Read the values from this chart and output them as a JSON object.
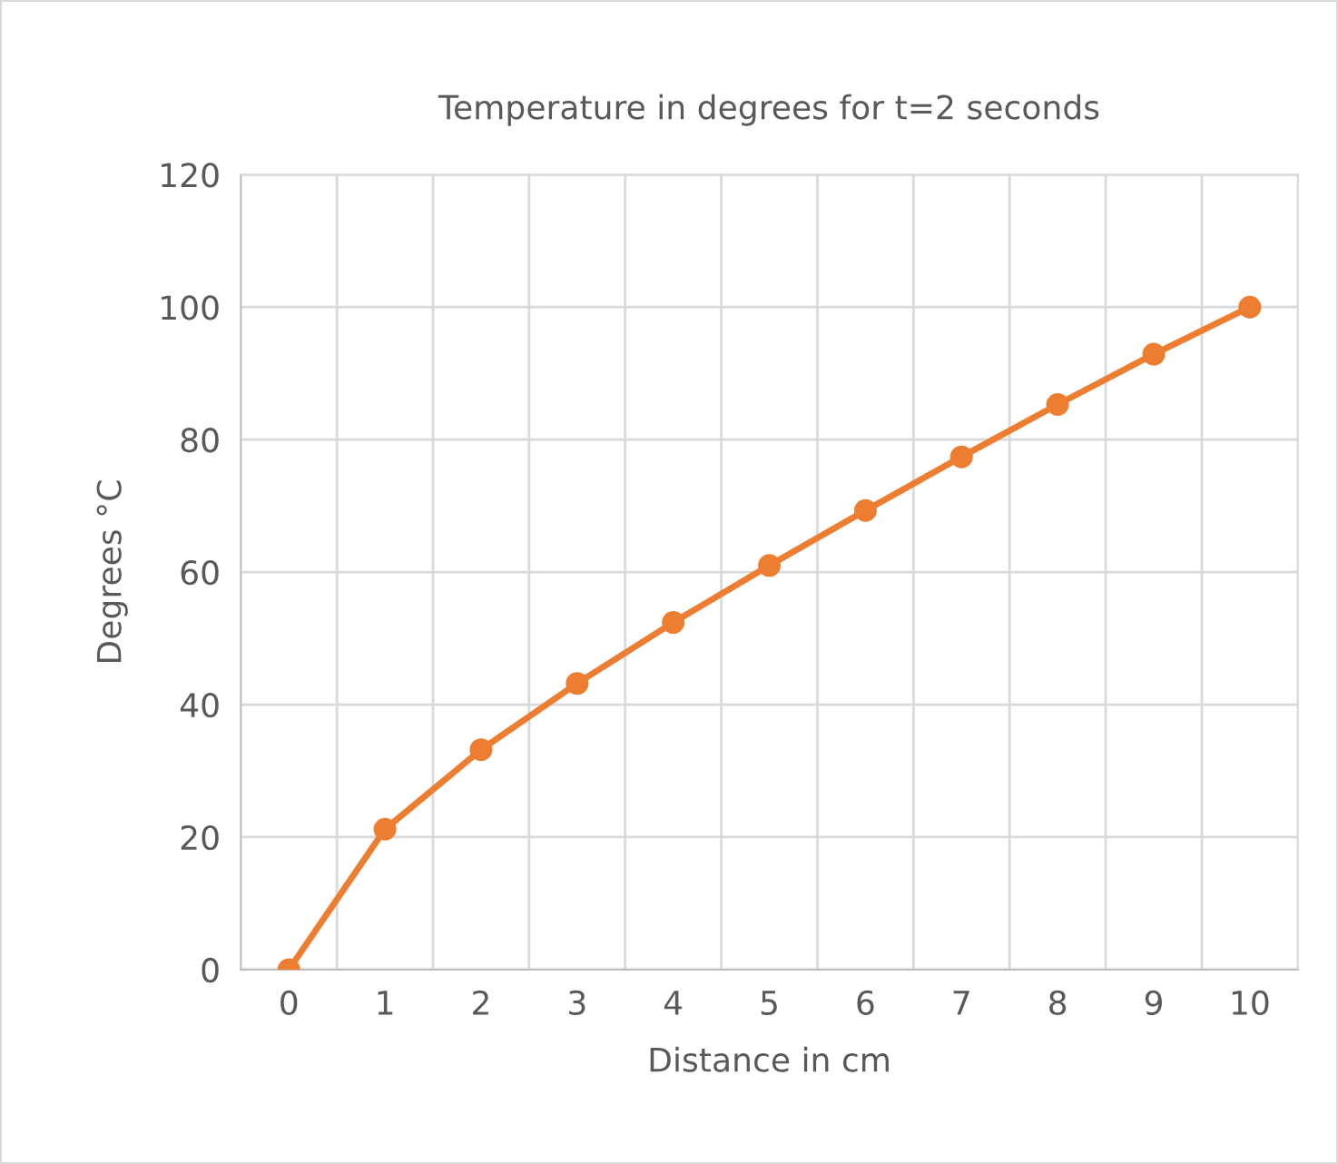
{
  "chart_data": {
    "type": "line",
    "title": "Temperature in degrees for t=2 seconds",
    "xlabel": "Distance in cm",
    "ylabel": "Degrees °C",
    "categories": [
      "0",
      "1",
      "2",
      "3",
      "4",
      "5",
      "6",
      "7",
      "8",
      "9",
      "10"
    ],
    "series": [
      {
        "color": "#ed7d31",
        "values": [
          0,
          21.2,
          33.2,
          43.2,
          52.4,
          61.0,
          69.3,
          77.4,
          85.3,
          92.9,
          100
        ]
      }
    ],
    "ylim": [
      0,
      120
    ],
    "yticks": [
      0,
      20,
      40,
      60,
      80,
      100,
      120
    ],
    "grid": true,
    "marker": "circle",
    "line_style": "solid"
  }
}
